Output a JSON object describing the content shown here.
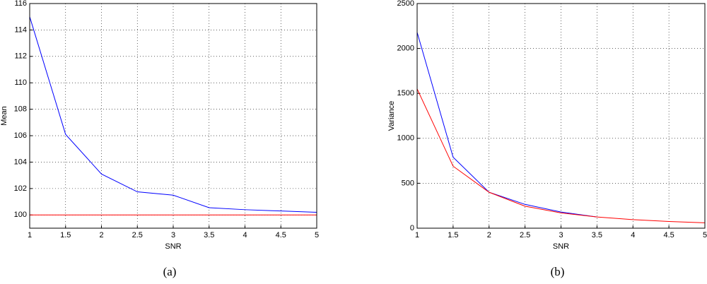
{
  "chart_data": [
    {
      "type": "line",
      "caption": "(a)",
      "xlabel": "SNR",
      "ylabel": "Mean",
      "x": [
        1,
        1.5,
        2,
        2.5,
        3,
        3.5,
        4,
        4.5,
        5
      ],
      "series": [
        {
          "color": "#0000ff",
          "values": [
            115,
            106.1,
            103.1,
            101.75,
            101.5,
            100.55,
            100.4,
            100.3,
            100.2
          ]
        },
        {
          "color": "#ff0000",
          "values": [
            100,
            100,
            100,
            100,
            100,
            100,
            100,
            100,
            100
          ]
        }
      ],
      "xlim": [
        1,
        5
      ],
      "xticks": [
        1,
        1.5,
        2,
        2.5,
        3,
        3.5,
        4,
        4.5,
        5
      ],
      "ylim": [
        99,
        116
      ],
      "yticks": [
        100,
        102,
        104,
        106,
        108,
        110,
        112,
        114,
        116
      ],
      "grid": true
    },
    {
      "type": "line",
      "caption": "(b)",
      "xlabel": "SNR",
      "ylabel": "Variance",
      "x": [
        1,
        1.5,
        2,
        2.5,
        3,
        3.5,
        4,
        4.5,
        5
      ],
      "series": [
        {
          "color": "#0000ff",
          "values": [
            2180,
            790,
            400,
            265,
            180,
            125,
            null,
            null,
            null
          ]
        },
        {
          "color": "#ff0000",
          "values": [
            1550,
            690,
            400,
            245,
            170,
            125,
            95,
            75,
            60
          ]
        }
      ],
      "xlim": [
        1,
        5
      ],
      "xticks": [
        1,
        1.5,
        2,
        2.5,
        3,
        3.5,
        4,
        4.5,
        5
      ],
      "ylim": [
        0,
        2500
      ],
      "yticks": [
        0,
        500,
        1000,
        1500,
        2000,
        2500
      ],
      "grid": true
    }
  ]
}
